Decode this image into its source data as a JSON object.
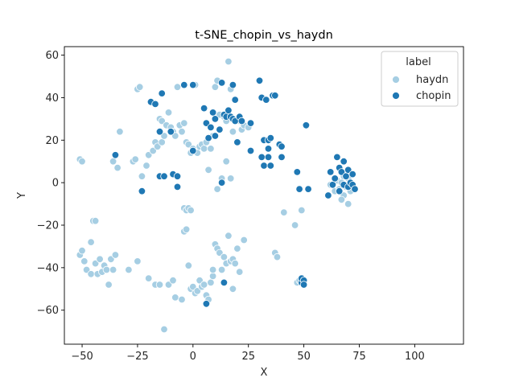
{
  "chart_data": {
    "type": "scatter",
    "title": "t-SNE_chopin_vs_haydn",
    "xlabel": "X",
    "ylabel": "Y",
    "xlim": [
      -58,
      122
    ],
    "ylim": [
      -76,
      64
    ],
    "xticks": [
      -50,
      -25,
      0,
      25,
      50,
      75,
      100
    ],
    "yticks": [
      -60,
      -40,
      -20,
      0,
      20,
      40,
      60
    ],
    "legend": {
      "title": "label",
      "position": "top-right",
      "entries": [
        "haydn",
        "chopin"
      ]
    },
    "series": [
      {
        "name": "haydn",
        "color": "#a6cee3",
        "points": [
          [
            -51,
            11
          ],
          [
            -50,
            10
          ],
          [
            -36,
            10
          ],
          [
            -34,
            7
          ],
          [
            -33,
            24
          ],
          [
            -27,
            10
          ],
          [
            -26,
            11
          ],
          [
            -25,
            44
          ],
          [
            -24,
            45
          ],
          [
            -23,
            3
          ],
          [
            -21,
            8
          ],
          [
            -20,
            13
          ],
          [
            -18,
            15
          ],
          [
            -17,
            19
          ],
          [
            -16,
            17
          ],
          [
            -15,
            30
          ],
          [
            -14,
            29
          ],
          [
            -14,
            19
          ],
          [
            -13,
            22
          ],
          [
            -12,
            27
          ],
          [
            -11,
            33
          ],
          [
            -10,
            26
          ],
          [
            -9,
            24
          ],
          [
            -8,
            22
          ],
          [
            -7,
            45
          ],
          [
            -6,
            27
          ],
          [
            -5,
            24
          ],
          [
            -4,
            28
          ],
          [
            -3,
            19
          ],
          [
            -2,
            18
          ],
          [
            -1,
            14
          ],
          [
            0,
            16
          ],
          [
            1,
            46
          ],
          [
            2,
            14
          ],
          [
            3,
            17
          ],
          [
            4,
            18
          ],
          [
            5,
            16
          ],
          [
            6,
            19
          ],
          [
            7,
            6
          ],
          [
            8,
            16
          ],
          [
            9,
            22
          ],
          [
            10,
            45
          ],
          [
            11,
            48
          ],
          [
            11,
            -3
          ],
          [
            13,
            2
          ],
          [
            15,
            10
          ],
          [
            16,
            57
          ],
          [
            16,
            30
          ],
          [
            17,
            2
          ],
          [
            17,
            44
          ],
          [
            18,
            24
          ],
          [
            20,
            29
          ],
          [
            21,
            29
          ],
          [
            22,
            25
          ],
          [
            23,
            27
          ],
          [
            25,
            26
          ],
          [
            14,
            31
          ],
          [
            15,
            29
          ],
          [
            12,
            32
          ],
          [
            -4,
            -12
          ],
          [
            -3,
            -13
          ],
          [
            -2,
            -12
          ],
          [
            -1,
            -13
          ],
          [
            -4,
            -23
          ],
          [
            -3,
            -22
          ],
          [
            41,
            -14
          ],
          [
            46,
            -20
          ],
          [
            49,
            -13
          ],
          [
            -51,
            -34
          ],
          [
            -50,
            -32
          ],
          [
            -49,
            -37
          ],
          [
            -48,
            -41
          ],
          [
            -46,
            -28
          ],
          [
            -46,
            -43
          ],
          [
            -45,
            -18
          ],
          [
            -44,
            -18
          ],
          [
            -44,
            -38
          ],
          [
            -43,
            -43
          ],
          [
            -42,
            -36
          ],
          [
            -41,
            -42
          ],
          [
            -40,
            -39
          ],
          [
            -39,
            -41
          ],
          [
            -38,
            -48
          ],
          [
            -37,
            -36
          ],
          [
            -36,
            -41
          ],
          [
            -35,
            -34
          ],
          [
            -29,
            -41
          ],
          [
            -25,
            -37
          ],
          [
            -20,
            -45
          ],
          [
            -17,
            -48
          ],
          [
            -15,
            -48
          ],
          [
            -13,
            -69
          ],
          [
            -11,
            -48
          ],
          [
            -9,
            -46
          ],
          [
            -8,
            -54
          ],
          [
            -5,
            -55
          ],
          [
            -2,
            -39
          ],
          [
            -1,
            -50
          ],
          [
            0,
            -49
          ],
          [
            1,
            -52
          ],
          [
            2,
            -51
          ],
          [
            3,
            -46
          ],
          [
            4,
            -49
          ],
          [
            5,
            -48
          ],
          [
            6,
            -53
          ],
          [
            7,
            -55
          ],
          [
            8,
            -47
          ],
          [
            9,
            -44
          ],
          [
            9,
            -41
          ],
          [
            10,
            -29
          ],
          [
            11,
            -31
          ],
          [
            12,
            -33
          ],
          [
            13,
            -41
          ],
          [
            14,
            -35
          ],
          [
            15,
            -38
          ],
          [
            16,
            -25
          ],
          [
            17,
            -37
          ],
          [
            18,
            -36
          ],
          [
            18,
            -50
          ],
          [
            19,
            -38
          ],
          [
            20,
            -31
          ],
          [
            21,
            -42
          ],
          [
            23,
            -27
          ],
          [
            37,
            -33
          ],
          [
            38,
            -35
          ],
          [
            47,
            -47
          ],
          [
            48,
            -46
          ],
          [
            49,
            -47
          ],
          [
            62,
            -1
          ],
          [
            64,
            -4
          ],
          [
            65,
            1
          ],
          [
            66,
            -3
          ],
          [
            67,
            0
          ],
          [
            68,
            -6
          ],
          [
            68,
            3
          ],
          [
            69,
            -2
          ],
          [
            70,
            2
          ],
          [
            71,
            -4
          ],
          [
            72,
            -1
          ],
          [
            67,
            -8
          ],
          [
            70,
            -10
          ]
        ]
      },
      {
        "name": "chopin",
        "color": "#1f78b4",
        "points": [
          [
            -35,
            13
          ],
          [
            -23,
            -4
          ],
          [
            -19,
            38
          ],
          [
            -17,
            37
          ],
          [
            -15,
            24
          ],
          [
            -15,
            3
          ],
          [
            -13,
            3
          ],
          [
            -14,
            42
          ],
          [
            -10,
            24
          ],
          [
            -9,
            4
          ],
          [
            -7,
            -2
          ],
          [
            -7,
            3
          ],
          [
            -4,
            46
          ],
          [
            0,
            46
          ],
          [
            0,
            15
          ],
          [
            5,
            35
          ],
          [
            6,
            28
          ],
          [
            7,
            21
          ],
          [
            8,
            26
          ],
          [
            9,
            33
          ],
          [
            10,
            22
          ],
          [
            10,
            30
          ],
          [
            12,
            25
          ],
          [
            13,
            0
          ],
          [
            13,
            47
          ],
          [
            14,
            32
          ],
          [
            15,
            31
          ],
          [
            16,
            34
          ],
          [
            17,
            31
          ],
          [
            18,
            30
          ],
          [
            18,
            46
          ],
          [
            19,
            29
          ],
          [
            19,
            39
          ],
          [
            20,
            19
          ],
          [
            21,
            31
          ],
          [
            22,
            29
          ],
          [
            26,
            28
          ],
          [
            26,
            15
          ],
          [
            30,
            48
          ],
          [
            31,
            40
          ],
          [
            31,
            12
          ],
          [
            32,
            8
          ],
          [
            32,
            20
          ],
          [
            33,
            39
          ],
          [
            34,
            20
          ],
          [
            34,
            16
          ],
          [
            34,
            12
          ],
          [
            35,
            21
          ],
          [
            35,
            8
          ],
          [
            36,
            41
          ],
          [
            37,
            41
          ],
          [
            39,
            18
          ],
          [
            40,
            12
          ],
          [
            40,
            17
          ],
          [
            47,
            5
          ],
          [
            48,
            -3
          ],
          [
            49,
            -47
          ],
          [
            49,
            -45
          ],
          [
            50,
            -46
          ],
          [
            50,
            -48
          ],
          [
            51,
            27
          ],
          [
            52,
            -3
          ],
          [
            61,
            -6
          ],
          [
            62,
            5
          ],
          [
            63,
            -1
          ],
          [
            64,
            2
          ],
          [
            65,
            12
          ],
          [
            66,
            7
          ],
          [
            66,
            -4
          ],
          [
            67,
            5
          ],
          [
            68,
            10
          ],
          [
            68,
            -1
          ],
          [
            69,
            3
          ],
          [
            70,
            -2
          ],
          [
            70,
            6
          ],
          [
            71,
            0
          ],
          [
            72,
            4
          ],
          [
            72,
            -1
          ],
          [
            73,
            -3
          ],
          [
            14,
            -47
          ],
          [
            6,
            -57
          ]
        ]
      }
    ]
  }
}
